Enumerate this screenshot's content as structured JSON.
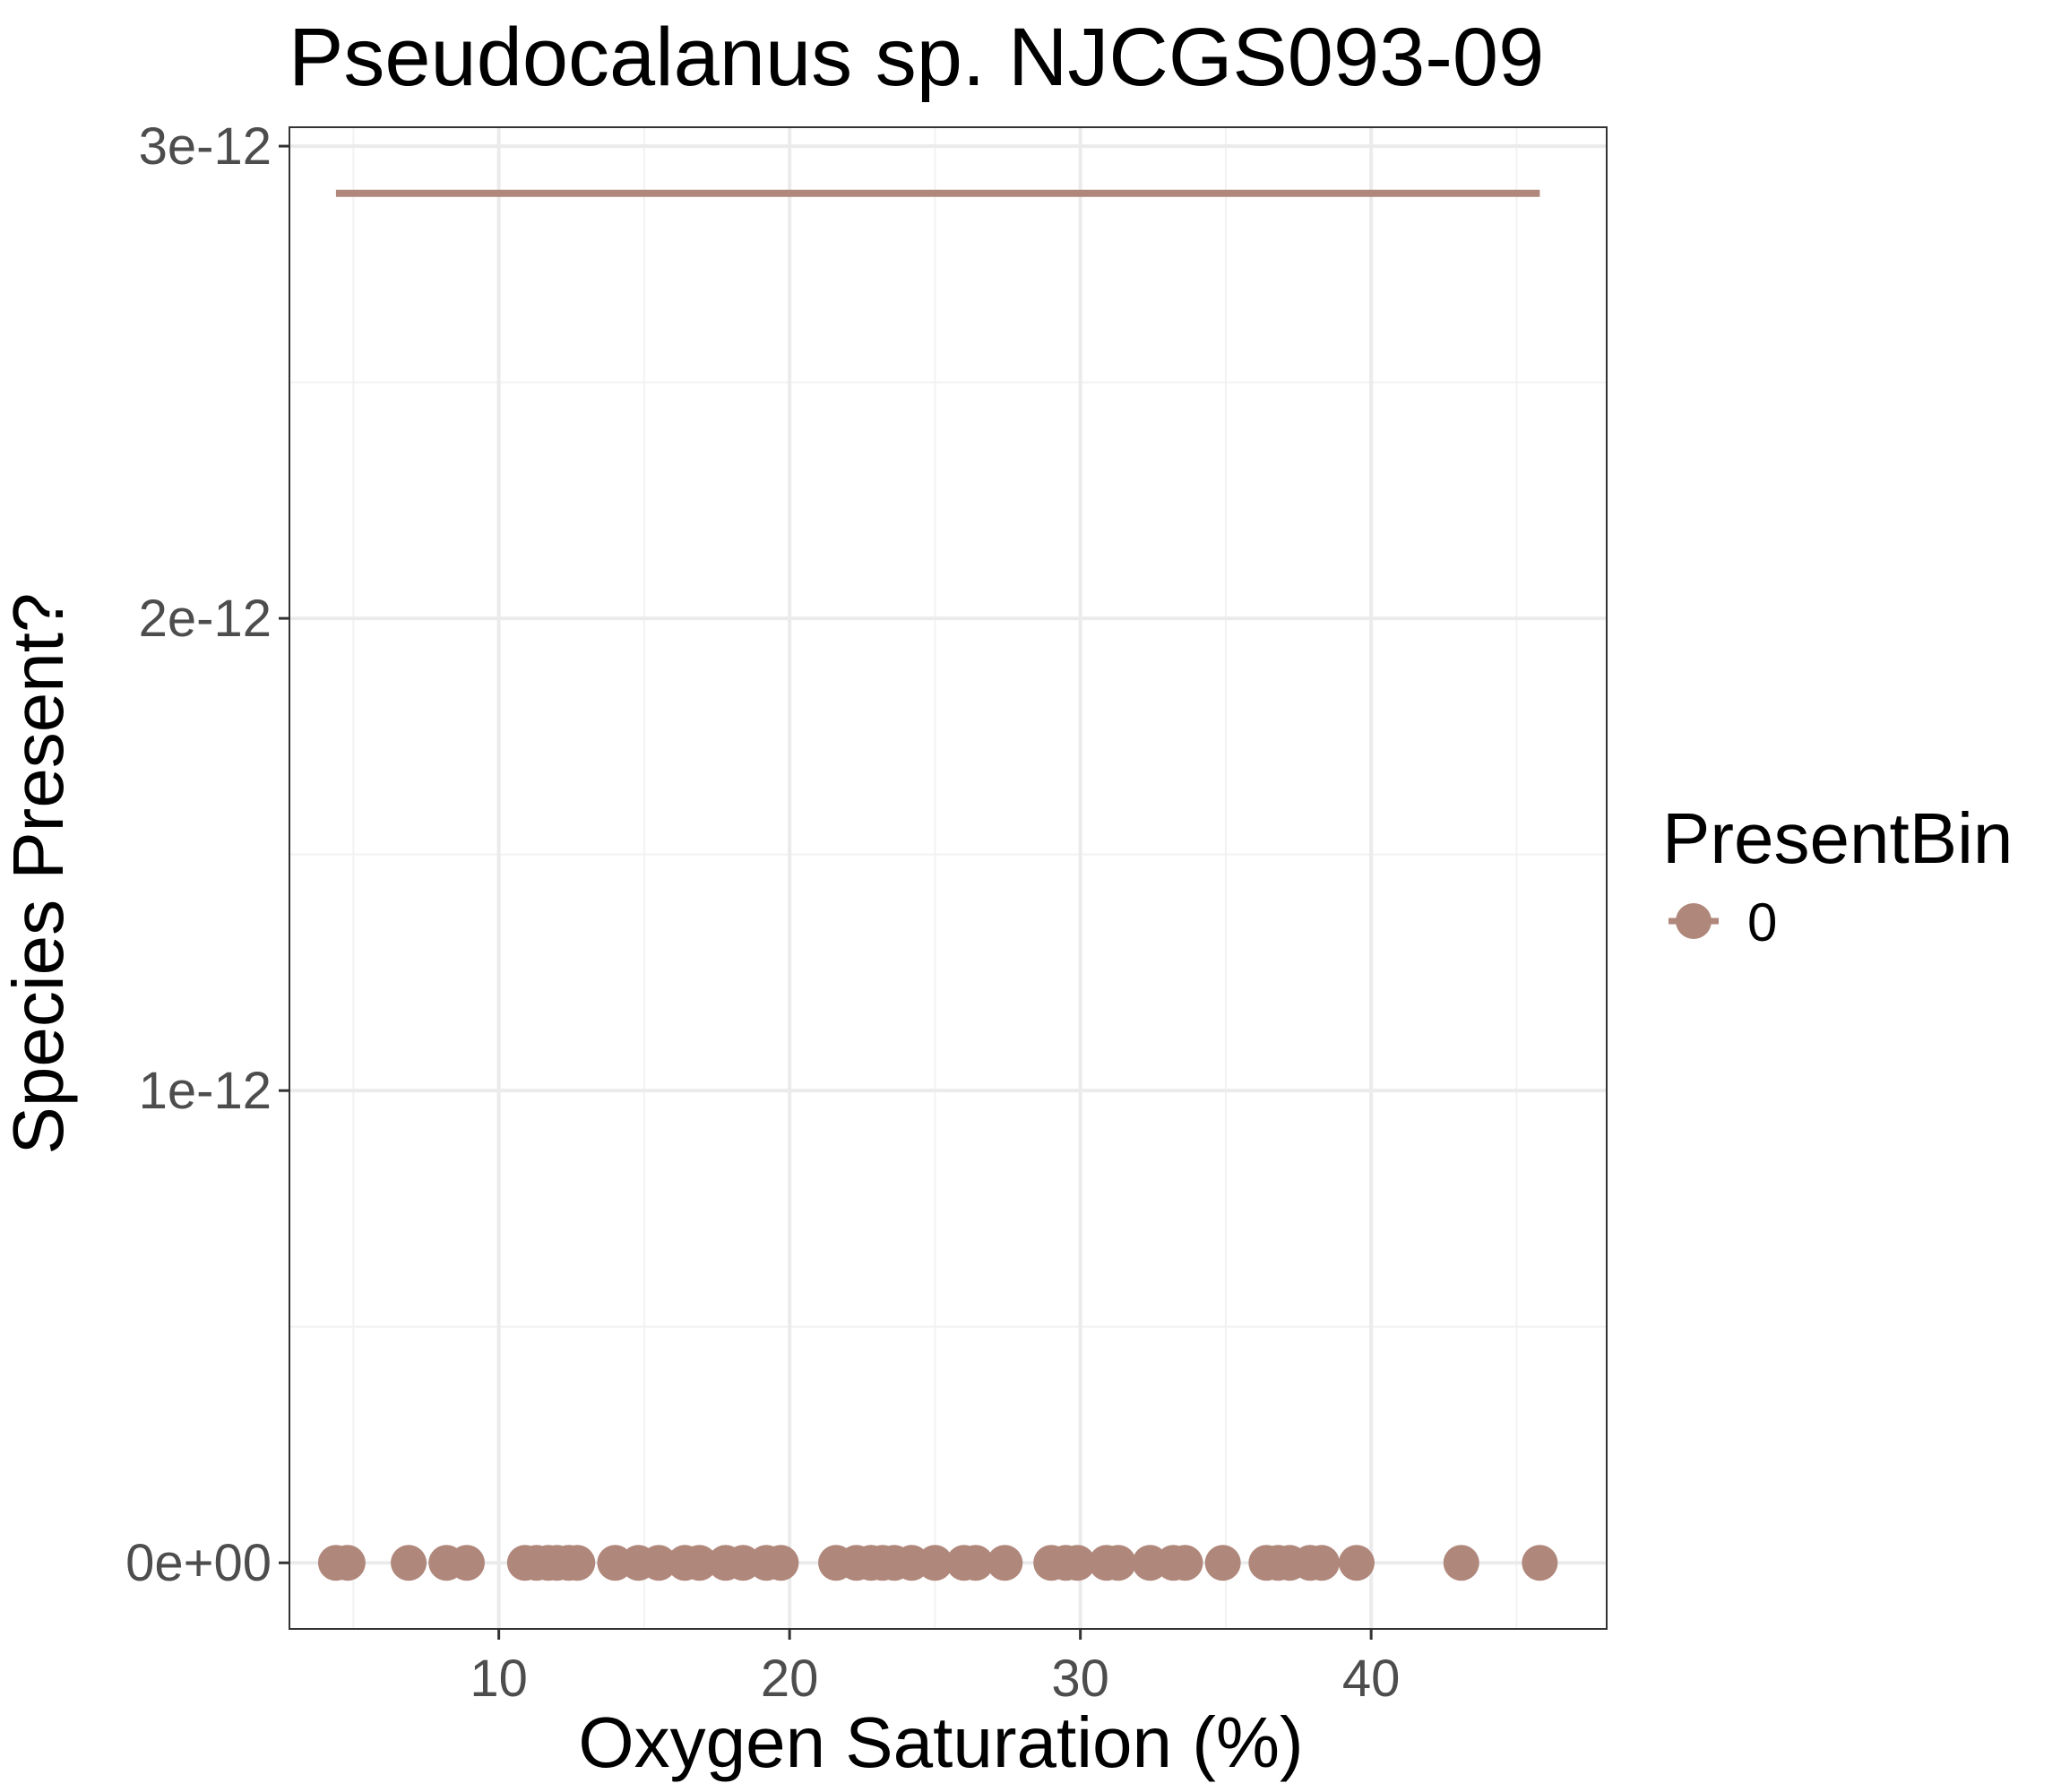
{
  "chart_data": {
    "type": "scatter",
    "title": "Pseudocalanus sp. NJCGS093-09",
    "xlabel": "Oxygen Saturation (%)",
    "ylabel": "Species Present?",
    "xlim": [
      2.8,
      48.1
    ],
    "ylim": [
      -1.4e-13,
      3.04e-12
    ],
    "x_ticks": [
      10,
      20,
      30,
      40
    ],
    "x_tick_labels": [
      "10",
      "20",
      "30",
      "40"
    ],
    "y_ticks": [
      0,
      1e-12,
      2e-12,
      3e-12
    ],
    "y_tick_labels": [
      "0e+00",
      "1e-12",
      "2e-12",
      "3e-12"
    ],
    "grid": true,
    "legend_position": "right",
    "legend_title": "PresentBin",
    "series": [
      {
        "name": "0",
        "color": "#b0877b",
        "marker": "circle",
        "x": [
          4.4,
          4.8,
          6.9,
          8.2,
          8.9,
          10.9,
          11.3,
          11.7,
          12.0,
          12.4,
          12.7,
          14.0,
          14.8,
          15.5,
          16.4,
          16.9,
          17.8,
          18.4,
          19.2,
          19.7,
          21.6,
          22.3,
          22.8,
          23.2,
          23.6,
          24.2,
          25.0,
          26.0,
          26.4,
          27.4,
          29.0,
          29.5,
          29.9,
          30.9,
          31.3,
          32.4,
          33.2,
          33.6,
          34.9,
          36.4,
          36.8,
          37.2,
          37.9,
          38.3,
          39.5,
          43.1,
          45.8
        ],
        "y": [
          0,
          0,
          0,
          0,
          0,
          0,
          0,
          0,
          0,
          0,
          0,
          0,
          0,
          0,
          0,
          0,
          0,
          0,
          0,
          0,
          0,
          0,
          0,
          0,
          0,
          0,
          0,
          0,
          0,
          0,
          0,
          0,
          0,
          0,
          0,
          0,
          0,
          0,
          0,
          0,
          0,
          0,
          0,
          0,
          0,
          0,
          0
        ]
      }
    ],
    "fit_line": {
      "color": "#b0877b",
      "x": [
        4.4,
        45.8
      ],
      "y": [
        2.9e-12,
        2.9e-12
      ]
    }
  }
}
